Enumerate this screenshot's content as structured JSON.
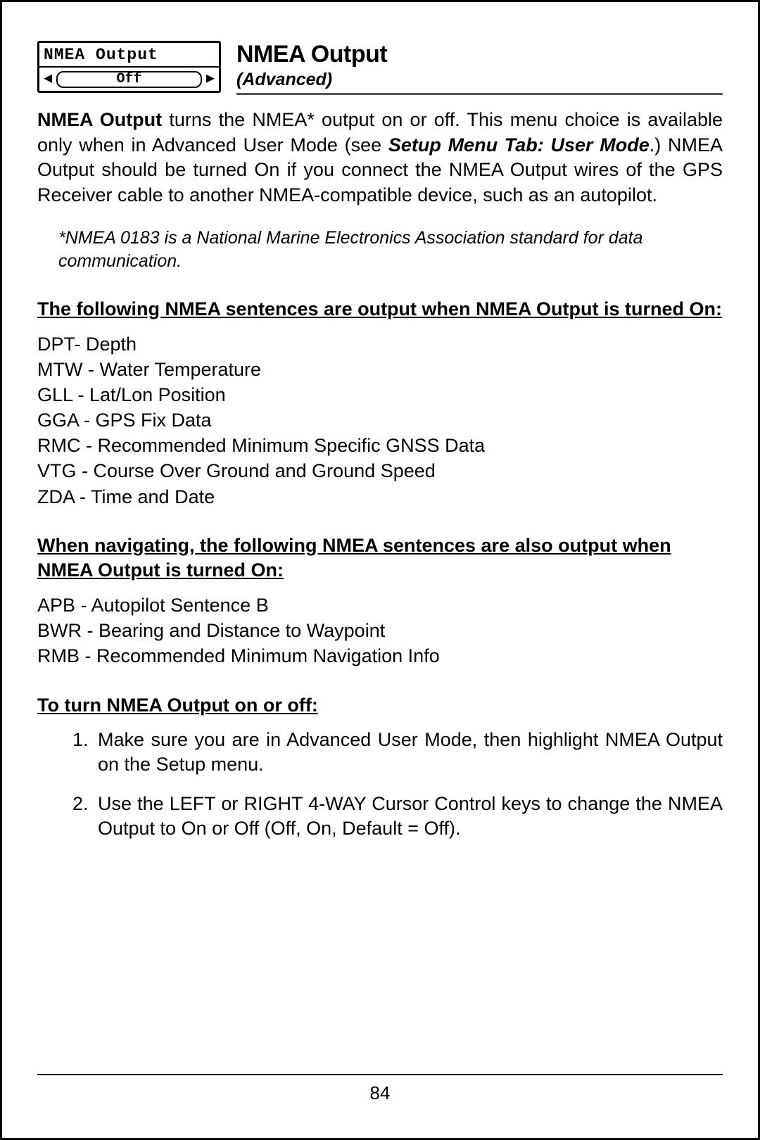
{
  "lcd": {
    "title": "NMEA Output",
    "value": "Off"
  },
  "heading": {
    "title": "NMEA Output",
    "subtitle": "(Advanced)"
  },
  "intro": {
    "lead_bold": "NMEA Output",
    "text_a": " turns the NMEA* output on or off.  This menu choice is available only when in Advanced User Mode (see ",
    "ref_bold_italic": "Setup Menu Tab: User Mode",
    "text_b": ".) NMEA Output should be turned On if you connect the NMEA Output wires of the GPS Receiver cable to another NMEA-compatible device, such as an autopilot."
  },
  "footnote": "*NMEA 0183 is a National Marine Electronics Association standard for data communication.",
  "section1": {
    "title": "The following NMEA sentences are output when NMEA Output is turned On:",
    "items": [
      "DPT- Depth",
      "MTW - Water Temperature",
      "GLL - Lat/Lon Position",
      "GGA - GPS Fix Data",
      "RMC - Recommended Minimum Specific GNSS Data",
      "VTG - Course Over Ground and Ground Speed",
      "ZDA - Time and Date"
    ]
  },
  "section2": {
    "title": "When navigating, the following NMEA sentences are also output when NMEA Output is turned On:",
    "items": [
      "APB - Autopilot Sentence B",
      "BWR - Bearing and Distance to Waypoint",
      "RMB - Recommended Minimum Navigation Info"
    ]
  },
  "section3": {
    "title": "To turn NMEA Output on or off:",
    "steps": [
      "Make sure you are in Advanced User Mode, then highlight NMEA Output on the Setup menu.",
      "Use the LEFT or RIGHT 4-WAY Cursor Control keys to change the NMEA Output to On or Off (Off, On, Default = Off)."
    ]
  },
  "page_number": "84"
}
